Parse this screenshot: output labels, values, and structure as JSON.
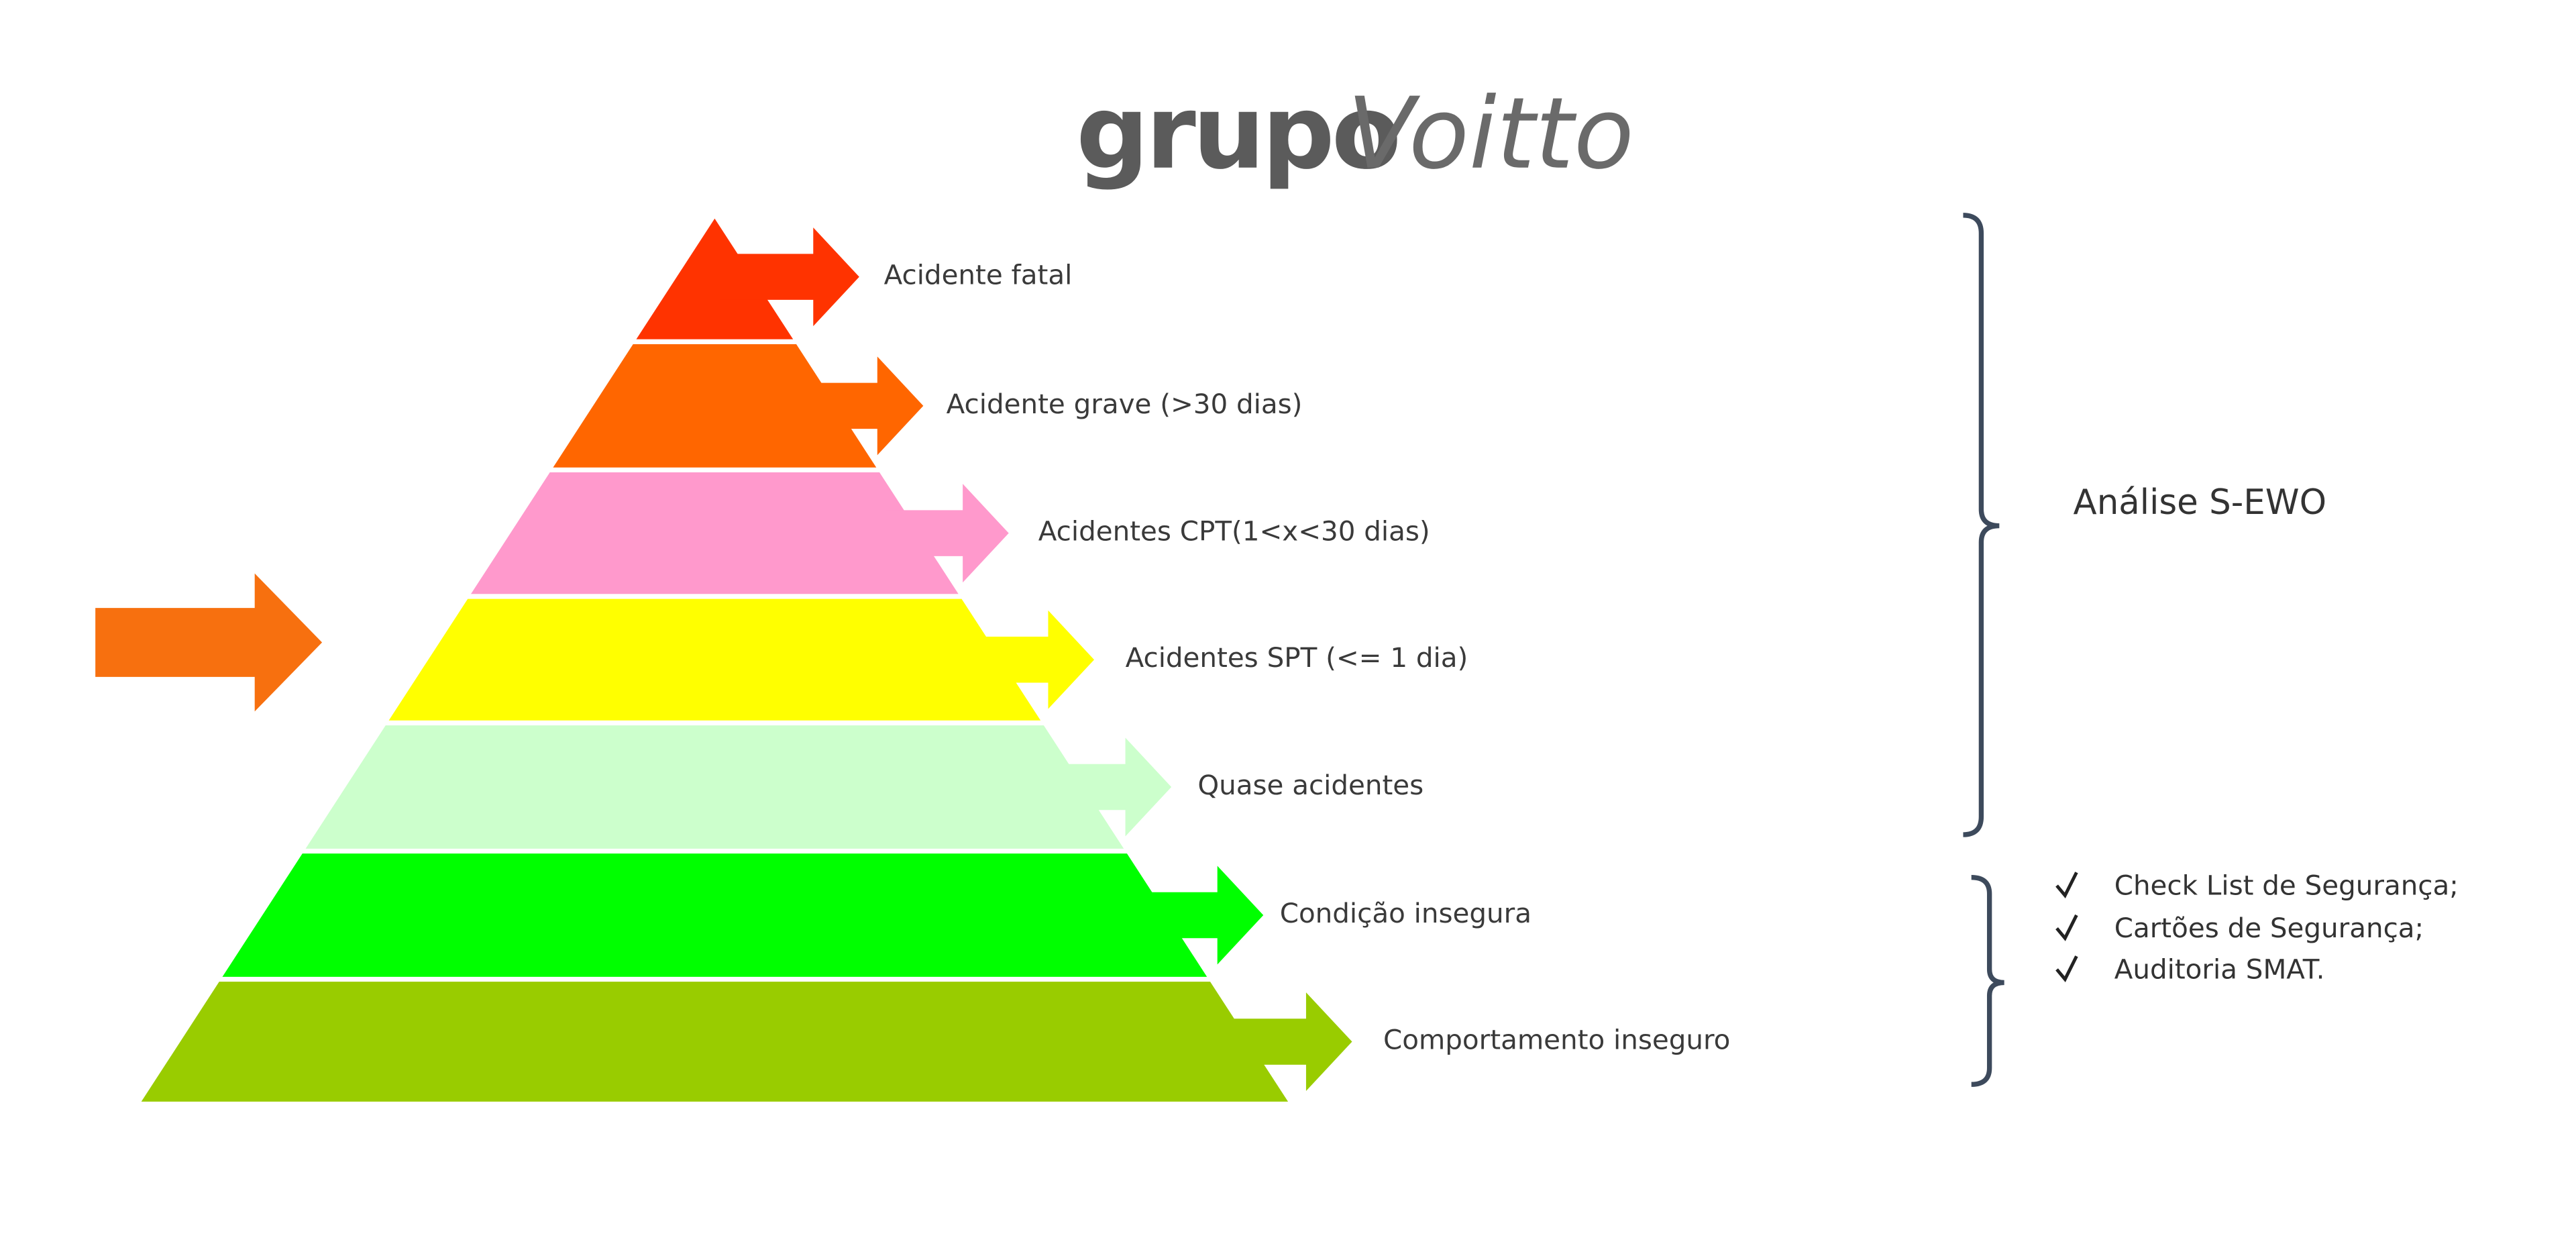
{
  "logo": {
    "part1": "grupo",
    "part2": "Voitto"
  },
  "colors": {
    "brace": "#3d4a5c",
    "left_arrow": "#f7700f",
    "text": "#3a3a3a"
  },
  "pyramid": {
    "levels": [
      {
        "label": "Acidente fatal",
        "color": "#ff3300"
      },
      {
        "label": "Acidente grave (>30 dias)",
        "color": "#ff6600"
      },
      {
        "label": "Acidentes CPT(1<x<30 dias)",
        "color": "#ff99cc"
      },
      {
        "label": "Acidentes SPT (<= 1 dia)",
        "color": "#ffff00"
      },
      {
        "label": "Quase acidentes",
        "color": "#ccffcc"
      },
      {
        "label": "Condição insegura",
        "color": "#00ff00"
      },
      {
        "label": "Comportamento inseguro",
        "color": "#99cc00"
      }
    ]
  },
  "analysis": {
    "label": "Análise S-EWO"
  },
  "checklist": {
    "check_icon": "check-mark",
    "items": [
      "Check List de Segurança;",
      "Cartões de Segurança;",
      "Auditoria SMAT."
    ]
  }
}
